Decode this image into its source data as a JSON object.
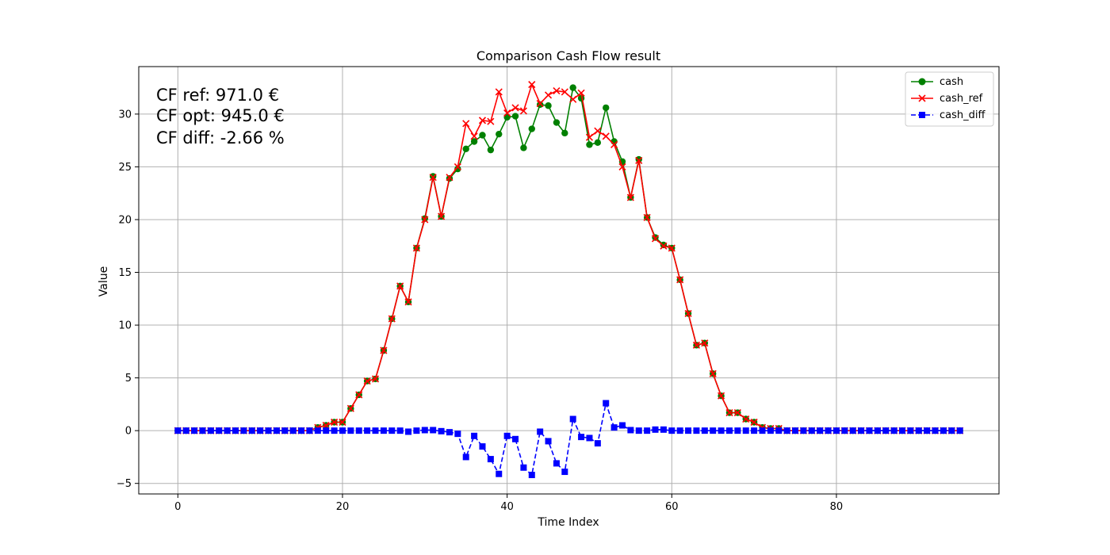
{
  "chart_data": {
    "type": "line",
    "title": "Comparison Cash Flow result",
    "xlabel": "Time Index",
    "ylabel": "Value",
    "xlim": [
      -4.75,
      99.75
    ],
    "ylim": [
      -6,
      34.5
    ],
    "xticks": [
      0,
      20,
      40,
      60,
      80
    ],
    "yticks": [
      -5,
      0,
      5,
      10,
      15,
      20,
      25,
      30
    ],
    "grid": true,
    "legend": "top-right",
    "annotations": [
      "CF ref: 971.0 €",
      "CF opt: 945.0 €",
      "CF diff: -2.66 %"
    ],
    "series": [
      {
        "name": "cash",
        "color": "#008000",
        "marker": "circle",
        "linestyle": "solid",
        "x": [
          0,
          1,
          2,
          3,
          4,
          5,
          6,
          7,
          8,
          9,
          10,
          11,
          12,
          13,
          14,
          15,
          16,
          17,
          18,
          19,
          20,
          21,
          22,
          23,
          24,
          25,
          26,
          27,
          28,
          29,
          30,
          31,
          32,
          33,
          34,
          35,
          36,
          37,
          38,
          39,
          40,
          41,
          42,
          43,
          44,
          45,
          46,
          47,
          48,
          49,
          50,
          51,
          52,
          53,
          54,
          55,
          56,
          57,
          58,
          59,
          60,
          61,
          62,
          63,
          64,
          65,
          66,
          67,
          68,
          69,
          70,
          71,
          72,
          73,
          74,
          75,
          76,
          77,
          78,
          79,
          80,
          81,
          82,
          83,
          84,
          85,
          86,
          87,
          88,
          89,
          90,
          91,
          92,
          93,
          94,
          95
        ],
        "y": [
          0,
          0,
          0,
          0,
          0,
          0,
          0,
          0,
          0,
          0,
          0,
          0,
          0,
          0,
          0,
          0,
          0,
          0.3,
          0.5,
          0.8,
          0.8,
          2.1,
          3.4,
          4.7,
          4.9,
          7.6,
          10.6,
          13.7,
          12.2,
          17.3,
          20.1,
          24.1,
          20.3,
          23.9,
          24.8,
          26.7,
          27.4,
          28.0,
          26.6,
          28.1,
          29.7,
          29.8,
          26.8,
          28.6,
          30.9,
          30.8,
          29.2,
          28.2,
          32.5,
          31.5,
          27.1,
          27.3,
          30.6,
          27.4,
          25.5,
          22.1,
          25.7,
          20.2,
          18.3,
          17.6,
          17.3,
          14.3,
          11.1,
          8.1,
          8.3,
          5.4,
          3.3,
          1.7,
          1.7,
          1.1,
          0.8,
          0.3,
          0.2,
          0.2,
          0,
          0,
          0,
          0,
          0,
          0,
          0,
          0,
          0,
          0,
          0,
          0,
          0,
          0,
          0,
          0,
          0,
          0,
          0,
          0,
          0,
          0
        ]
      },
      {
        "name": "cash_ref",
        "color": "#ff0000",
        "marker": "x",
        "linestyle": "solid",
        "x": [
          0,
          1,
          2,
          3,
          4,
          5,
          6,
          7,
          8,
          9,
          10,
          11,
          12,
          13,
          14,
          15,
          16,
          17,
          18,
          19,
          20,
          21,
          22,
          23,
          24,
          25,
          26,
          27,
          28,
          29,
          30,
          31,
          32,
          33,
          34,
          35,
          36,
          37,
          38,
          39,
          40,
          41,
          42,
          43,
          44,
          45,
          46,
          47,
          48,
          49,
          50,
          51,
          52,
          53,
          54,
          55,
          56,
          57,
          58,
          59,
          60,
          61,
          62,
          63,
          64,
          65,
          66,
          67,
          68,
          69,
          70,
          71,
          72,
          73,
          74,
          75,
          76,
          77,
          78,
          79,
          80,
          81,
          82,
          83,
          84,
          85,
          86,
          87,
          88,
          89,
          90,
          91,
          92,
          93,
          94,
          95
        ],
        "y": [
          0,
          0,
          0,
          0,
          0,
          0,
          0,
          0,
          0,
          0,
          0,
          0,
          0,
          0,
          0,
          0,
          0,
          0.3,
          0.5,
          0.8,
          0.8,
          2.1,
          3.4,
          4.7,
          4.9,
          7.6,
          10.6,
          13.7,
          12.2,
          17.3,
          20.0,
          24.0,
          20.3,
          24.0,
          25.0,
          29.1,
          27.9,
          29.4,
          29.3,
          32.1,
          30.1,
          30.6,
          30.3,
          32.8,
          31.0,
          31.8,
          32.2,
          32.1,
          31.4,
          32.0,
          27.8,
          28.4,
          27.9,
          27.1,
          25.0,
          22.1,
          25.6,
          20.2,
          18.2,
          17.5,
          17.3,
          14.3,
          11.1,
          8.1,
          8.3,
          5.4,
          3.3,
          1.7,
          1.7,
          1.1,
          0.8,
          0.3,
          0.2,
          0.2,
          0,
          0,
          0,
          0,
          0,
          0,
          0,
          0,
          0,
          0,
          0,
          0,
          0,
          0,
          0,
          0,
          0,
          0,
          0,
          0,
          0,
          0
        ]
      },
      {
        "name": "cash_diff",
        "color": "#0000ff",
        "marker": "square",
        "linestyle": "dashed",
        "x": [
          0,
          1,
          2,
          3,
          4,
          5,
          6,
          7,
          8,
          9,
          10,
          11,
          12,
          13,
          14,
          15,
          16,
          17,
          18,
          19,
          20,
          21,
          22,
          23,
          24,
          25,
          26,
          27,
          28,
          29,
          30,
          31,
          32,
          33,
          34,
          35,
          36,
          37,
          38,
          39,
          40,
          41,
          42,
          43,
          44,
          45,
          46,
          47,
          48,
          49,
          50,
          51,
          52,
          53,
          54,
          55,
          56,
          57,
          58,
          59,
          60,
          61,
          62,
          63,
          64,
          65,
          66,
          67,
          68,
          69,
          70,
          71,
          72,
          73,
          74,
          75,
          76,
          77,
          78,
          79,
          80,
          81,
          82,
          83,
          84,
          85,
          86,
          87,
          88,
          89,
          90,
          91,
          92,
          93,
          94,
          95
        ],
        "y": [
          0,
          0,
          0,
          0,
          0,
          0,
          0,
          0,
          0,
          0,
          0,
          0,
          0,
          0,
          0,
          0,
          0,
          0,
          0,
          0,
          0,
          0,
          0,
          0,
          0,
          0,
          0,
          0,
          -0.1,
          0,
          0.05,
          0.05,
          -0.05,
          -0.15,
          -0.3,
          -2.5,
          -0.5,
          -1.5,
          -2.7,
          -4.1,
          -0.5,
          -0.8,
          -3.5,
          -4.2,
          -0.1,
          -1.0,
          -3.1,
          -3.9,
          1.1,
          -0.6,
          -0.7,
          -1.2,
          2.6,
          0.3,
          0.5,
          0.05,
          0,
          0,
          0.1,
          0.1,
          0,
          0,
          0,
          0,
          0,
          0,
          0,
          0,
          0,
          0,
          0,
          0,
          0,
          0,
          0,
          0,
          0,
          0,
          0,
          0,
          0,
          0,
          0,
          0,
          0,
          0,
          0,
          0,
          0,
          0,
          0,
          0,
          0,
          0,
          0,
          0
        ]
      }
    ]
  }
}
